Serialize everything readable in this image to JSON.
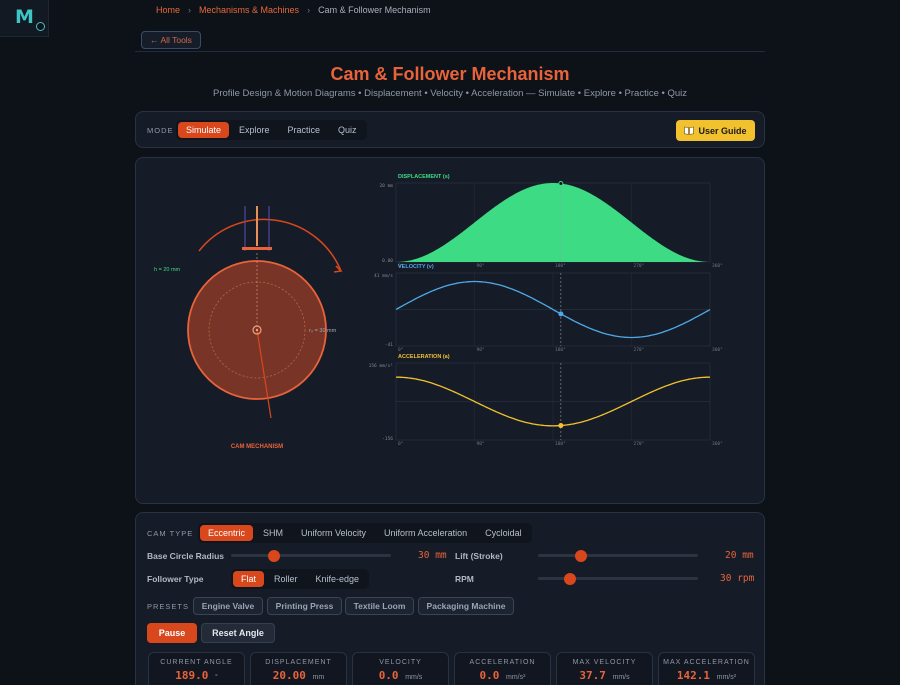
{
  "nav": {
    "breadcrumbs": [
      "Home",
      "Mechanisms & Machines",
      "Cam & Follower Mechanism"
    ],
    "back_label": "← All Tools"
  },
  "header": {
    "title": "Cam & Follower Mechanism",
    "subtitle": "Profile Design & Motion Diagrams • Displacement • Velocity • Acceleration — Simulate • Explore • Practice • Quiz"
  },
  "mode": {
    "label": "MODE",
    "options": [
      "Simulate",
      "Explore",
      "Practice",
      "Quiz"
    ],
    "active": "Simulate",
    "guide_label": "User Guide",
    "guide_icon": "book-icon"
  },
  "visual": {
    "cam_label": "CAM MECHANISM",
    "lift_label": "h = 20 mm",
    "radius_label": "r₀ = 30 mm",
    "colors": {
      "cam_fill": "#8a3a28",
      "cam_stroke": "#e8633a",
      "displacement": "#3ddc84",
      "velocity": "#4fa9e8",
      "acceleration": "#f2c12e"
    }
  },
  "chart_data": [
    {
      "type": "area",
      "title": "DISPLACEMENT (s)",
      "y_top_label": "20 mm",
      "y_bottom_label": "0.00",
      "x_ticks": [
        "0°",
        "90°",
        "180°",
        "270°",
        "360°"
      ],
      "xlim": [
        0,
        360
      ],
      "ylim": [
        0,
        20
      ],
      "marker_x": 189
    },
    {
      "type": "line",
      "title": "VELOCITY (v)",
      "y_top_label": "41 mm/s",
      "y_bottom_label": "-41",
      "x_ticks": [
        "0°",
        "90°",
        "180°",
        "270°",
        "360°"
      ],
      "xlim": [
        0,
        360
      ],
      "ylim": [
        -41,
        41
      ],
      "marker_x": 189
    },
    {
      "type": "line",
      "title": "ACCELERATION (a)",
      "y_top_label": "156 mm/s²",
      "y_bottom_label": "-156",
      "x_ticks": [
        "0°",
        "90°",
        "180°",
        "270°",
        "360°"
      ],
      "xlim": [
        0,
        360
      ],
      "ylim": [
        -156,
        156
      ],
      "marker_x": 189
    }
  ],
  "controls": {
    "cam_type_label": "CAM TYPE",
    "cam_types": [
      "Eccentric",
      "SHM",
      "Uniform Velocity",
      "Uniform Acceleration",
      "Cycloidal"
    ],
    "cam_type_active": "Eccentric",
    "base_circle": {
      "label": "Base Circle Radius",
      "value": "30",
      "unit": "mm",
      "fraction": 0.27
    },
    "lift": {
      "label": "Lift (Stroke)",
      "value": "20",
      "unit": "mm",
      "fraction": 0.27
    },
    "follower_label": "Follower Type",
    "followers": [
      "Flat",
      "Roller",
      "Knife-edge"
    ],
    "follower_active": "Flat",
    "rpm": {
      "label": "RPM",
      "value": "30",
      "unit": "rpm",
      "fraction": 0.2
    },
    "presets_label": "PRESETS",
    "presets": [
      "Engine Valve",
      "Printing Press",
      "Textile Loom",
      "Packaging Machine"
    ],
    "pause_label": "Pause",
    "reset_label": "Reset Angle"
  },
  "stats": [
    {
      "label": "CURRENT ANGLE",
      "value": "189.0",
      "unit": "°"
    },
    {
      "label": "DISPLACEMENT",
      "value": "20.00",
      "unit": "mm"
    },
    {
      "label": "VELOCITY",
      "value": "0.0",
      "unit": "mm/s"
    },
    {
      "label": "ACCELERATION",
      "value": "0.0",
      "unit": "mm/s²"
    },
    {
      "label": "MAX VELOCITY",
      "value": "37.7",
      "unit": "mm/s"
    },
    {
      "label": "MAX ACCELERATION",
      "value": "142.1",
      "unit": "mm/s²"
    }
  ]
}
